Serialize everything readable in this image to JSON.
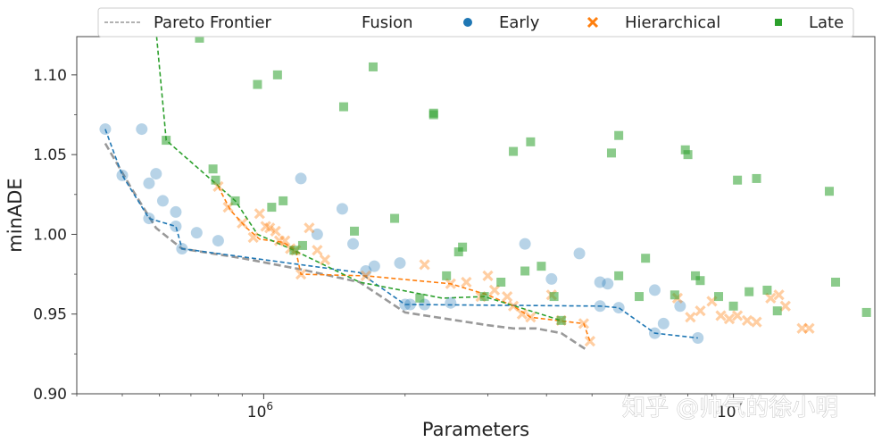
{
  "chart_data": {
    "type": "scatter",
    "title": "",
    "xlabel": "Parameters",
    "ylabel": "minADE",
    "xscale": "log",
    "xlim": [
      400000,
      20000000
    ],
    "ylim": [
      0.9,
      1.124
    ],
    "yticks": [
      0.9,
      0.95,
      1.0,
      1.05,
      1.1
    ],
    "ytick_labels": [
      "0.90",
      "0.95",
      "1.00",
      "1.05",
      "1.10"
    ],
    "xticks": [
      1000000,
      10000000
    ],
    "xtick_base": "10",
    "xtick_exponents": [
      "6",
      "7"
    ],
    "grid": false,
    "legend": {
      "placement": "top",
      "frontier_label": "Pareto Frontier",
      "group_title": "Fusion",
      "entries": [
        "Early",
        "Hierarchical",
        "Late"
      ]
    },
    "colors": {
      "early": "#1f77b4",
      "hierarchical": "#ff7f0e",
      "late": "#2ca02c",
      "frontier": "#999999"
    },
    "series": [
      {
        "name": "Early",
        "marker": "circle",
        "points": [
          [
            460000,
            1.066
          ],
          [
            500000,
            1.037
          ],
          [
            550000,
            1.066
          ],
          [
            570000,
            1.032
          ],
          [
            590000,
            1.038
          ],
          [
            610000,
            1.021
          ],
          [
            570000,
            1.01
          ],
          [
            650000,
            1.014
          ],
          [
            650000,
            1.005
          ],
          [
            720000,
            1.001
          ],
          [
            670000,
            0.991
          ],
          [
            800000,
            0.996
          ],
          [
            1200000,
            1.035
          ],
          [
            1300000,
            1.0
          ],
          [
            1470000,
            1.016
          ],
          [
            1550000,
            0.994
          ],
          [
            1650000,
            0.977
          ],
          [
            1720000,
            0.98
          ],
          [
            1950000,
            0.982
          ],
          [
            2000000,
            0.956
          ],
          [
            2050000,
            0.956
          ],
          [
            2200000,
            0.956
          ],
          [
            2500000,
            0.957
          ],
          [
            3600000,
            0.994
          ],
          [
            4100000,
            0.972
          ],
          [
            4700000,
            0.988
          ],
          [
            5200000,
            0.97
          ],
          [
            5200000,
            0.955
          ],
          [
            5400000,
            0.969
          ],
          [
            5700000,
            0.954
          ],
          [
            6800000,
            0.965
          ],
          [
            6800000,
            0.938
          ],
          [
            7100000,
            0.944
          ],
          [
            7700000,
            0.955
          ],
          [
            8400000,
            0.935
          ]
        ]
      },
      {
        "name": "Hierarchical",
        "marker": "x",
        "points": [
          [
            800000,
            1.03
          ],
          [
            840000,
            1.017
          ],
          [
            900000,
            1.007
          ],
          [
            950000,
            0.998
          ],
          [
            980000,
            1.013
          ],
          [
            1010000,
            1.005
          ],
          [
            1030000,
            1.004
          ],
          [
            1060000,
            1.002
          ],
          [
            1080000,
            0.996
          ],
          [
            1110000,
            0.996
          ],
          [
            1140000,
            0.991
          ],
          [
            1170000,
            0.99
          ],
          [
            1200000,
            0.975
          ],
          [
            1250000,
            1.004
          ],
          [
            1300000,
            0.99
          ],
          [
            1350000,
            0.984
          ],
          [
            1650000,
            0.974
          ],
          [
            2200000,
            0.981
          ],
          [
            2500000,
            0.969
          ],
          [
            2700000,
            0.97
          ],
          [
            2900000,
            0.961
          ],
          [
            3000000,
            0.974
          ],
          [
            3100000,
            0.965
          ],
          [
            3300000,
            0.961
          ],
          [
            3400000,
            0.955
          ],
          [
            3550000,
            0.95
          ],
          [
            3700000,
            0.948
          ],
          [
            4100000,
            0.962
          ],
          [
            4300000,
            0.946
          ],
          [
            4800000,
            0.944
          ],
          [
            4950000,
            0.933
          ],
          [
            7600000,
            0.96
          ],
          [
            8100000,
            0.948
          ],
          [
            8500000,
            0.952
          ],
          [
            9000000,
            0.958
          ],
          [
            9400000,
            0.949
          ],
          [
            9800000,
            0.947
          ],
          [
            10200000,
            0.949
          ],
          [
            10700000,
            0.946
          ],
          [
            11200000,
            0.945
          ],
          [
            12000000,
            0.96
          ],
          [
            12500000,
            0.962
          ],
          [
            12900000,
            0.955
          ],
          [
            14000000,
            0.941
          ],
          [
            14500000,
            0.941
          ]
        ]
      },
      {
        "name": "Late",
        "marker": "square",
        "points": [
          [
            620000,
            1.059
          ],
          [
            730000,
            1.123
          ],
          [
            780000,
            1.041
          ],
          [
            790000,
            1.034
          ],
          [
            870000,
            1.021
          ],
          [
            970000,
            1.094
          ],
          [
            1040000,
            1.017
          ],
          [
            1070000,
            1.1
          ],
          [
            1100000,
            1.021
          ],
          [
            1160000,
            0.99
          ],
          [
            1210000,
            0.993
          ],
          [
            1480000,
            1.08
          ],
          [
            1560000,
            1.002
          ],
          [
            1710000,
            1.105
          ],
          [
            1900000,
            1.01
          ],
          [
            2150000,
            0.96
          ],
          [
            2300000,
            1.075
          ],
          [
            2300000,
            1.076
          ],
          [
            2450000,
            0.974
          ],
          [
            2600000,
            0.989
          ],
          [
            2650000,
            0.992
          ],
          [
            2950000,
            0.961
          ],
          [
            3200000,
            0.97
          ],
          [
            3400000,
            1.052
          ],
          [
            3700000,
            1.058
          ],
          [
            3600000,
            0.977
          ],
          [
            3900000,
            0.98
          ],
          [
            4150000,
            0.961
          ],
          [
            4300000,
            0.946
          ],
          [
            5500000,
            1.051
          ],
          [
            5700000,
            1.062
          ],
          [
            5700000,
            0.974
          ],
          [
            6300000,
            0.961
          ],
          [
            6500000,
            0.985
          ],
          [
            7500000,
            0.962
          ],
          [
            7900000,
            1.053
          ],
          [
            8000000,
            1.05
          ],
          [
            8300000,
            0.974
          ],
          [
            8500000,
            0.971
          ],
          [
            9300000,
            0.961
          ],
          [
            10000000,
            0.955
          ],
          [
            10200000,
            1.034
          ],
          [
            10800000,
            0.964
          ],
          [
            11200000,
            1.035
          ],
          [
            11800000,
            0.965
          ],
          [
            12400000,
            0.952
          ],
          [
            16000000,
            1.027
          ],
          [
            16500000,
            0.97
          ],
          [
            19200000,
            0.951
          ]
        ]
      }
    ],
    "frontiers": [
      {
        "name": "Pareto Frontier",
        "style": "dashed",
        "points": [
          [
            460000,
            1.057
          ],
          [
            520000,
            1.03
          ],
          [
            590000,
            1.004
          ],
          [
            670000,
            0.991
          ],
          [
            900000,
            0.985
          ],
          [
            1200000,
            0.978
          ],
          [
            1600000,
            0.97
          ],
          [
            2000000,
            0.951
          ],
          [
            3000000,
            0.943
          ],
          [
            3400000,
            0.941
          ],
          [
            3800000,
            0.941
          ],
          [
            4300000,
            0.938
          ],
          [
            4900000,
            0.927
          ]
        ]
      },
      {
        "name": "Early",
        "style": "dashed",
        "points": [
          [
            460000,
            1.066
          ],
          [
            500000,
            1.037
          ],
          [
            570000,
            1.01
          ],
          [
            650000,
            1.005
          ],
          [
            670000,
            0.991
          ],
          [
            1600000,
            0.976
          ],
          [
            2000000,
            0.956
          ],
          [
            5200000,
            0.955
          ],
          [
            5700000,
            0.954
          ],
          [
            6800000,
            0.938
          ],
          [
            8400000,
            0.935
          ]
        ]
      },
      {
        "name": "Hierarchical",
        "style": "dashed",
        "points": [
          [
            800000,
            1.03
          ],
          [
            850000,
            1.015
          ],
          [
            920000,
            1.004
          ],
          [
            980000,
            0.997
          ],
          [
            1100000,
            0.995
          ],
          [
            1170000,
            0.99
          ],
          [
            1200000,
            0.975
          ],
          [
            1650000,
            0.974
          ],
          [
            2500000,
            0.969
          ],
          [
            3000000,
            0.962
          ],
          [
            3400000,
            0.955
          ],
          [
            3700000,
            0.948
          ],
          [
            4800000,
            0.944
          ],
          [
            4950000,
            0.933
          ]
        ]
      },
      {
        "name": "Late",
        "style": "dashed",
        "points": [
          [
            560000,
            1.2
          ],
          [
            620000,
            1.059
          ],
          [
            870000,
            1.021
          ],
          [
            970000,
            1.0
          ],
          [
            1160000,
            0.99
          ],
          [
            1600000,
            0.97
          ],
          [
            2400000,
            0.96
          ],
          [
            2950000,
            0.961
          ],
          [
            4300000,
            0.946
          ]
        ]
      }
    ]
  },
  "watermark": "知乎 @帅气的徐小明"
}
